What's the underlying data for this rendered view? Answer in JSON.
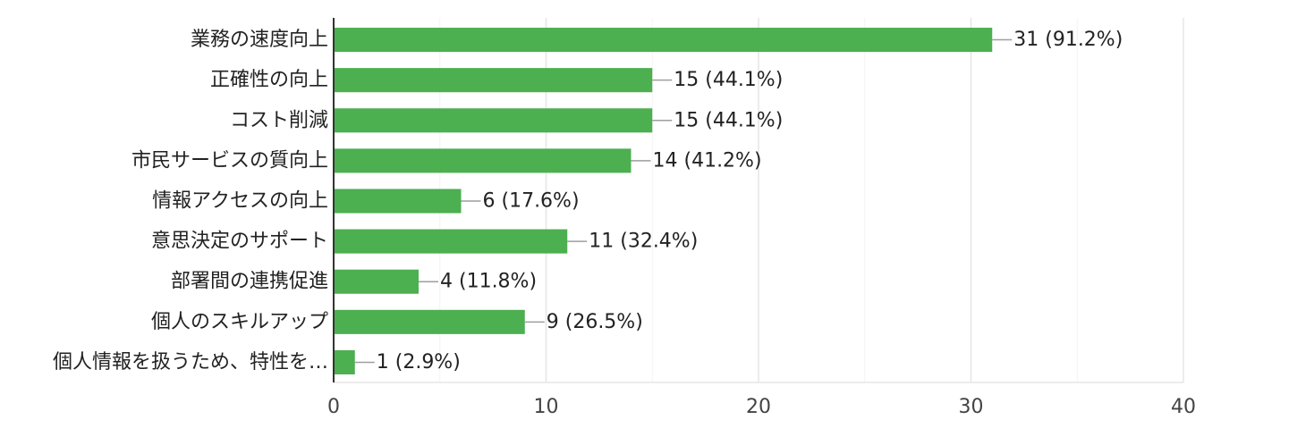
{
  "chart_data": {
    "type": "bar",
    "orientation": "horizontal",
    "categories": [
      "業務の速度向上",
      "正確性の向上",
      "コスト削減",
      "市民サービスの質向上",
      "情報アクセスの向上",
      "意思決定のサポート",
      "部署間の連携促進",
      "個人のスキルアップ",
      "個人情報を扱うため、特性を…"
    ],
    "values": [
      31,
      15,
      15,
      14,
      6,
      11,
      4,
      9,
      1
    ],
    "value_labels": [
      "31 (91.2%)",
      "15 (44.1%)",
      "15 (44.1%)",
      "14 (41.2%)",
      "6 (17.6%)",
      "11 (32.4%)",
      "4 (11.8%)",
      "9 (26.5%)",
      "1 (2.9%)"
    ],
    "x_ticks": [
      "0",
      "10",
      "20",
      "30",
      "40"
    ],
    "xlim": [
      0,
      40
    ],
    "title": "",
    "xlabel": "",
    "ylabel": "",
    "grid": true,
    "colors": {
      "bar": "#4caf50",
      "grid_major": "#e6e6e6",
      "grid_minor": "#f3f3f3",
      "axis": "#333333",
      "leader": "#9e9e9e"
    }
  }
}
